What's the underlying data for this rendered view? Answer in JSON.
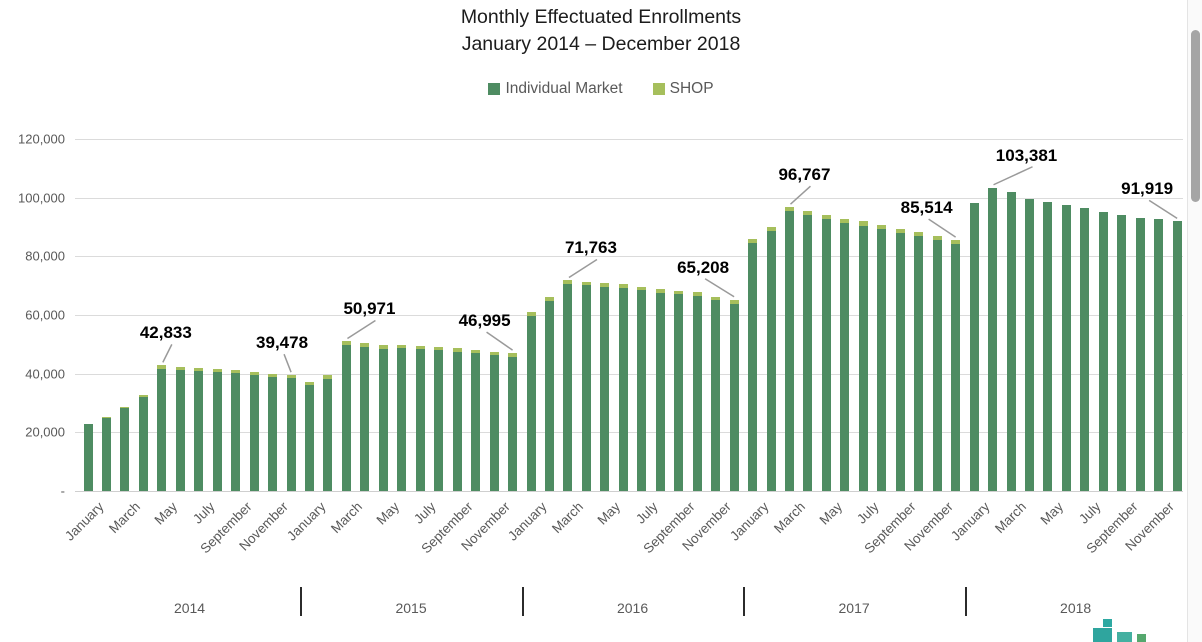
{
  "chart_data": {
    "type": "bar",
    "stacked": true,
    "title": "Monthly Effectuated Enrollments",
    "subtitle": "January 2014 – December 2018",
    "grid": true,
    "legend_position": "top",
    "ylim": [
      0,
      120000
    ],
    "ytick_interval": 20000,
    "y_tick_labels": [
      "120,000",
      "100,000",
      "80,000",
      "60,000",
      "40,000",
      "20,000",
      "-"
    ],
    "month_tick_labels": [
      "January",
      "March",
      "May",
      "July",
      "September",
      "November"
    ],
    "years": [
      "2014",
      "2015",
      "2016",
      "2017",
      "2018"
    ],
    "categories": [
      "January 2014",
      "February 2014",
      "March 2014",
      "April 2014",
      "May 2014",
      "June 2014",
      "July 2014",
      "August 2014",
      "September 2014",
      "October 2014",
      "November 2014",
      "December 2014",
      "January 2015",
      "February 2015",
      "March 2015",
      "April 2015",
      "May 2015",
      "June 2015",
      "July 2015",
      "August 2015",
      "September 2015",
      "October 2015",
      "November 2015",
      "December 2015",
      "January 2016",
      "February 2016",
      "March 2016",
      "April 2016",
      "May 2016",
      "June 2016",
      "July 2016",
      "August 2016",
      "September 2016",
      "October 2016",
      "November 2016",
      "December 2016",
      "January 2017",
      "February 2017",
      "March 2017",
      "April 2017",
      "May 2017",
      "June 2017",
      "July 2017",
      "August 2017",
      "September 2017",
      "October 2017",
      "November 2017",
      "December 2017",
      "January 2018",
      "February 2018",
      "March 2018",
      "April 2018",
      "May 2018",
      "June 2018",
      "July 2018",
      "August 2018",
      "September 2018",
      "October 2018",
      "November 2018",
      "December 2018"
    ],
    "series": [
      {
        "name": "Individual Market",
        "color": "#4e8c62",
        "values": [
          22800,
          24900,
          28200,
          32000,
          41733,
          41200,
          40800,
          40400,
          40100,
          39500,
          38900,
          38378,
          36000,
          38200,
          49771,
          49100,
          48500,
          48700,
          48400,
          47900,
          47400,
          46900,
          46200,
          45795,
          59700,
          64800,
          70463,
          70100,
          69600,
          69300,
          68400,
          67400,
          67000,
          66500,
          65000,
          63908,
          84500,
          88700,
          95367,
          94100,
          92800,
          91300,
          90500,
          89400,
          88000,
          87000,
          85700,
          84114,
          98100,
          103381,
          101900,
          99600,
          98400,
          97600,
          96500,
          95100,
          94200,
          93100,
          92700,
          91919
        ]
      },
      {
        "name": "SHOP",
        "color": "#a6bf5c",
        "values": [
          200,
          400,
          500,
          700,
          1100,
          1100,
          1100,
          1100,
          1100,
          1100,
          1100,
          1100,
          1200,
          1200,
          1200,
          1200,
          1200,
          1200,
          1200,
          1200,
          1200,
          1200,
          1200,
          1200,
          1300,
          1300,
          1300,
          1300,
          1300,
          1300,
          1300,
          1300,
          1300,
          1300,
          1300,
          1300,
          1400,
          1400,
          1400,
          1400,
          1400,
          1400,
          1400,
          1400,
          1400,
          1400,
          1400,
          1400,
          0,
          0,
          0,
          0,
          0,
          0,
          0,
          0,
          0,
          0,
          0,
          0
        ]
      }
    ],
    "annotations": [
      {
        "label": "42,833",
        "value": 42833,
        "category": "May 2014",
        "category_index": 4,
        "side": "right"
      },
      {
        "label": "39,478",
        "value": 39478,
        "category": "December 2014",
        "category_index": 11,
        "side": "left"
      },
      {
        "label": "50,971",
        "value": 50971,
        "category": "March 2015",
        "category_index": 14,
        "side": "right"
      },
      {
        "label": "46,995",
        "value": 46995,
        "category": "December 2015",
        "category_index": 23,
        "side": "left"
      },
      {
        "label": "71,763",
        "value": 71763,
        "category": "March 2016",
        "category_index": 26,
        "side": "right"
      },
      {
        "label": "65,208",
        "value": 65208,
        "category": "December 2016",
        "category_index": 35,
        "side": "left"
      },
      {
        "label": "96,767",
        "value": 96767,
        "category": "March 2017",
        "category_index": 38,
        "side": "right"
      },
      {
        "label": "85,514",
        "value": 85514,
        "category": "December 2017",
        "category_index": 47,
        "side": "left"
      },
      {
        "label": "103,381",
        "value": 103381,
        "category": "February 2018",
        "category_index": 49,
        "side": "right"
      },
      {
        "label": "91,919",
        "value": 91919,
        "category": "December 2018",
        "category_index": 59,
        "side": "left"
      }
    ]
  }
}
